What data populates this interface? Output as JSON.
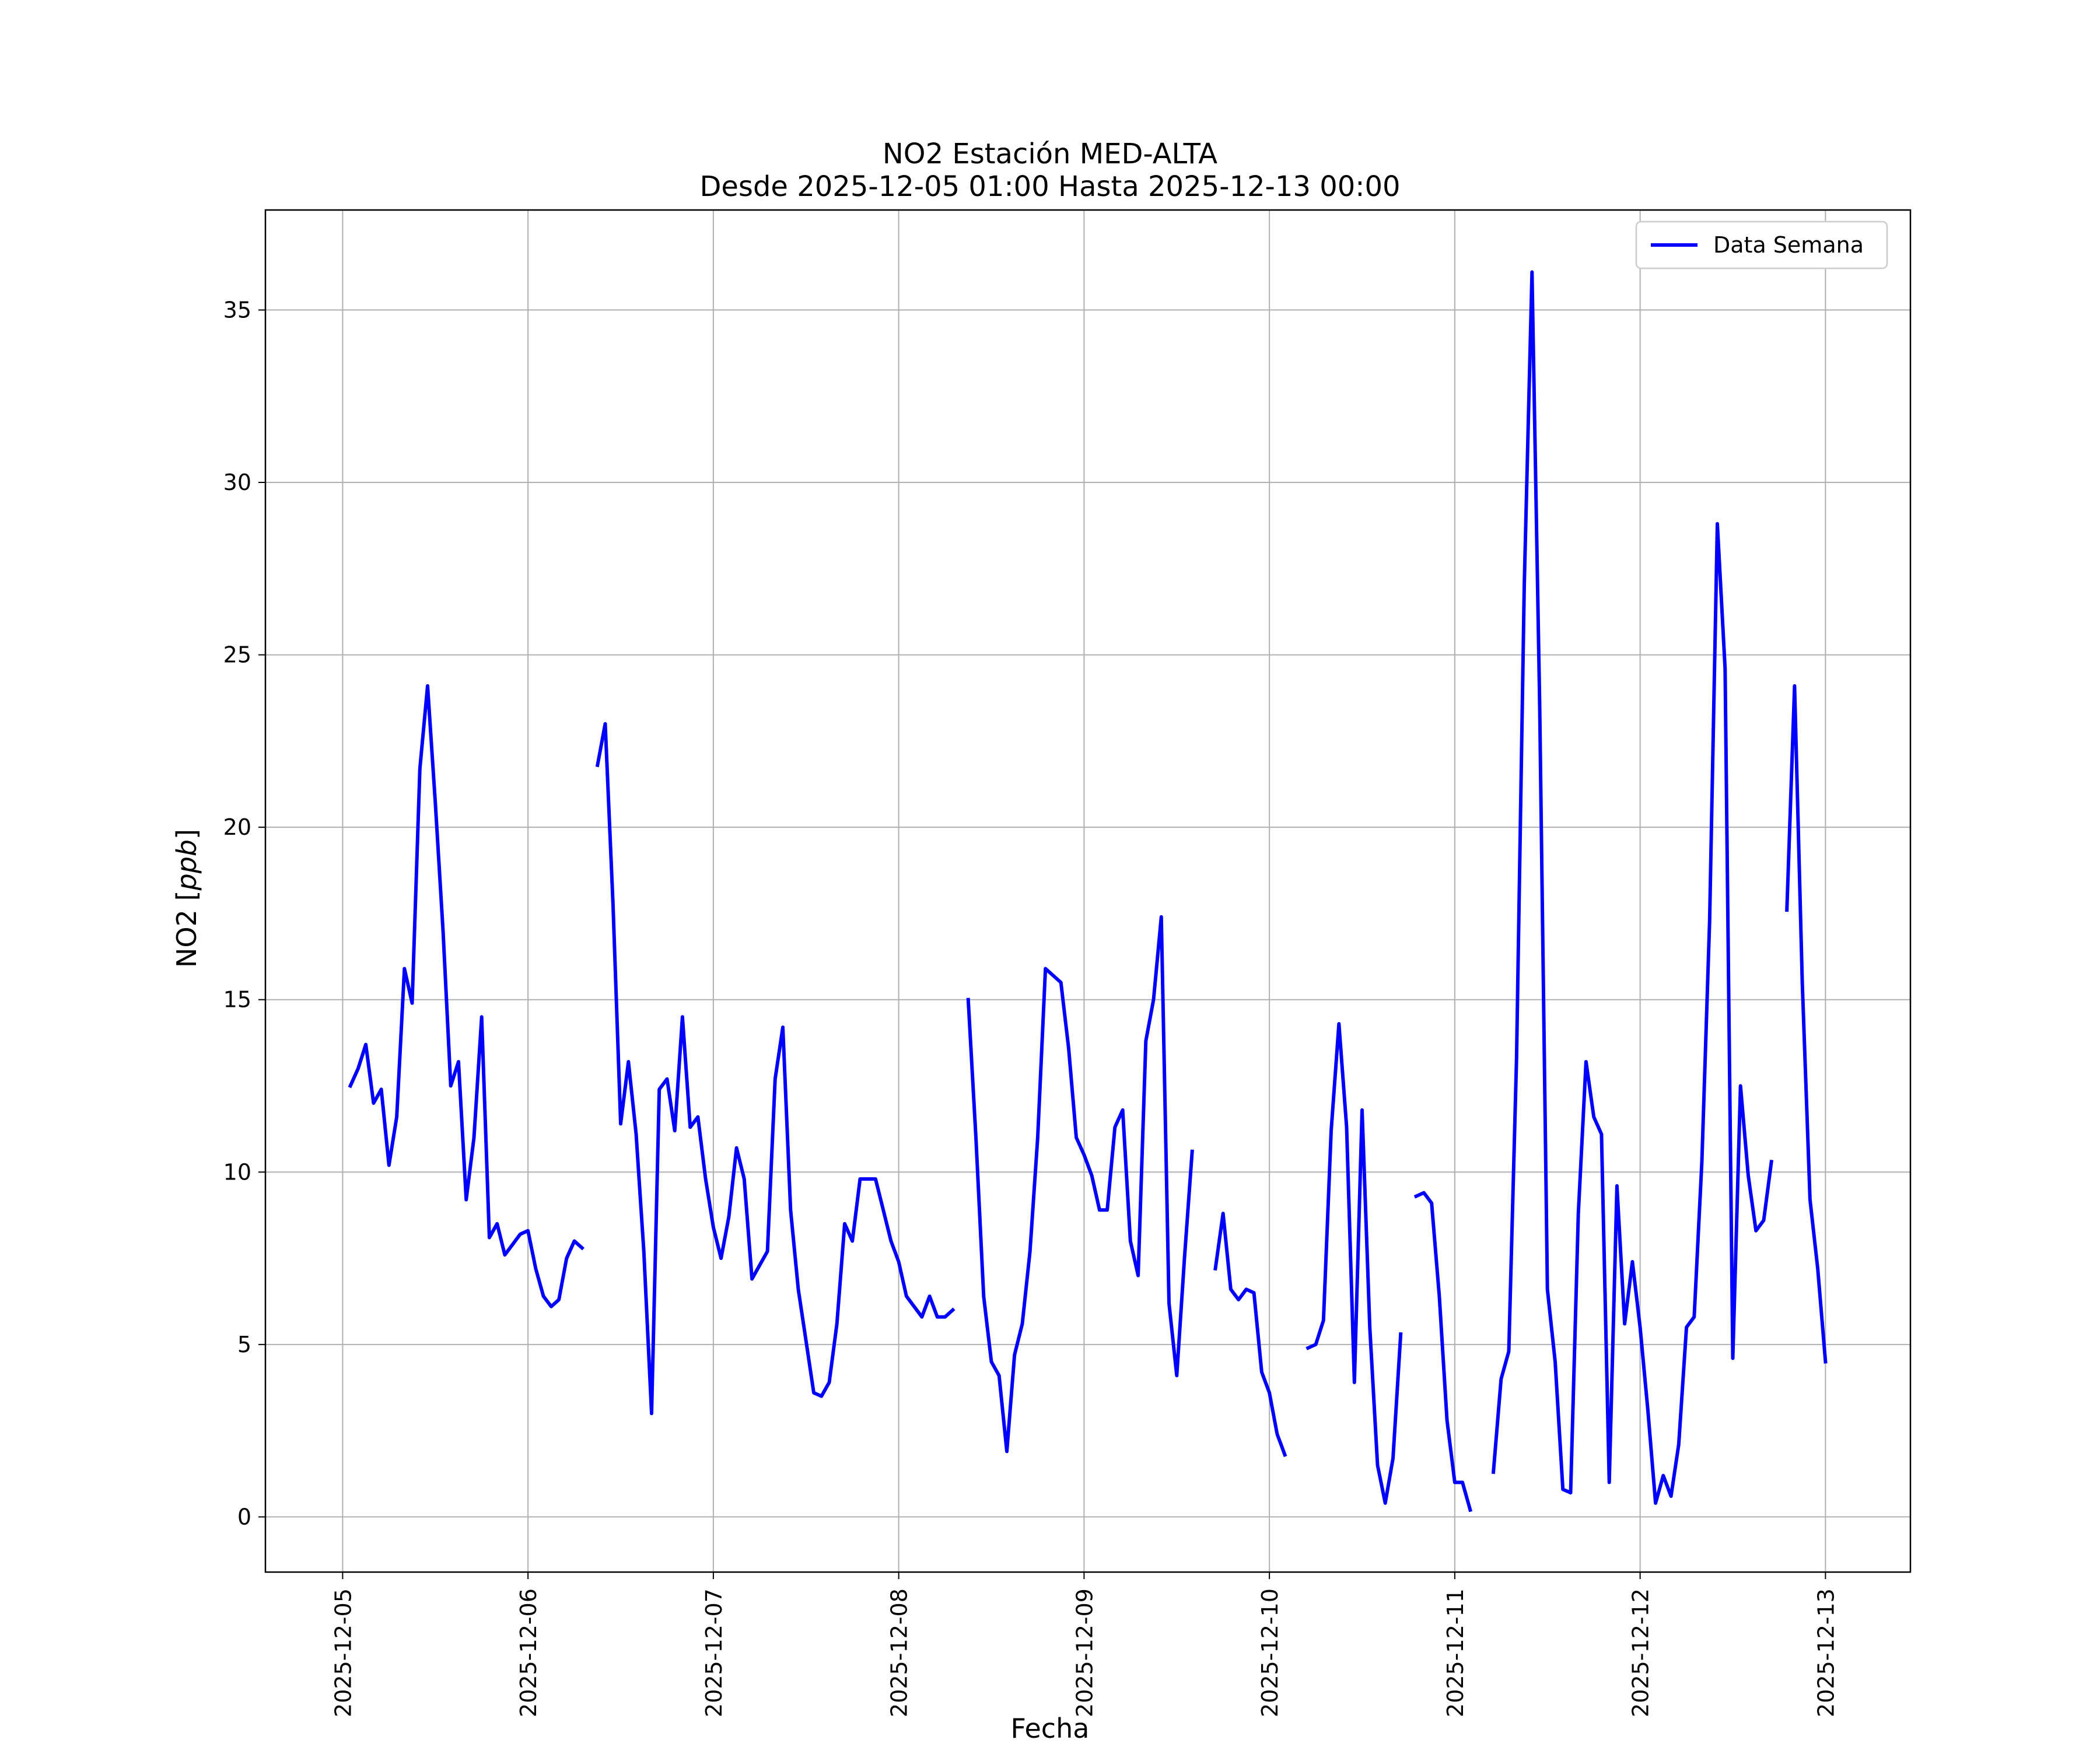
{
  "chart_data": {
    "type": "line",
    "title": "NO2 Estación MED-ALTA",
    "subtitle": "Desde 2025-12-05 01:00 Hasta 2025-12-13 00:00",
    "xlabel": "Fecha",
    "ylabel_prefix": "NO2 [",
    "ylabel_unit": "ppb",
    "ylabel_suffix": "]",
    "x_ticks": [
      "2025-12-05",
      "2025-12-06",
      "2025-12-07",
      "2025-12-08",
      "2025-12-09",
      "2025-12-10",
      "2025-12-11",
      "2025-12-12",
      "2025-12-13"
    ],
    "y_ticks": [
      0,
      5,
      10,
      15,
      20,
      25,
      30,
      35
    ],
    "xlim": [
      "2025-12-04 14:00",
      "2025-12-13 11:00"
    ],
    "ylim": [
      -1.6,
      37.9
    ],
    "grid": true,
    "legend_position": "top-right",
    "series": [
      {
        "name": "Data Semana",
        "color": "#0000ff",
        "segments": [
          [
            [
              "2025-12-05 01:00",
              12.5
            ],
            [
              "2025-12-05 02:00",
              13.0
            ],
            [
              "2025-12-05 03:00",
              13.7
            ],
            [
              "2025-12-05 04:00",
              12.0
            ],
            [
              "2025-12-05 05:00",
              12.4
            ],
            [
              "2025-12-05 06:00",
              10.2
            ],
            [
              "2025-12-05 07:00",
              11.6
            ],
            [
              "2025-12-05 08:00",
              15.9
            ],
            [
              "2025-12-05 09:00",
              14.9
            ],
            [
              "2025-12-05 10:00",
              21.7
            ],
            [
              "2025-12-05 11:00",
              24.1
            ],
            [
              "2025-12-05 12:00",
              20.7
            ],
            [
              "2025-12-05 13:00",
              17.0
            ],
            [
              "2025-12-05 14:00",
              12.5
            ],
            [
              "2025-12-05 15:00",
              13.2
            ],
            [
              "2025-12-05 16:00",
              9.2
            ],
            [
              "2025-12-05 17:00",
              11.0
            ],
            [
              "2025-12-05 18:00",
              14.5
            ],
            [
              "2025-12-05 19:00",
              8.1
            ],
            [
              "2025-12-05 20:00",
              8.5
            ],
            [
              "2025-12-05 21:00",
              7.6
            ],
            [
              "2025-12-05 22:00",
              7.9
            ],
            [
              "2025-12-05 23:00",
              8.2
            ],
            [
              "2025-12-06 00:00",
              8.3
            ],
            [
              "2025-12-06 01:00",
              7.2
            ],
            [
              "2025-12-06 02:00",
              6.4
            ],
            [
              "2025-12-06 03:00",
              6.1
            ],
            [
              "2025-12-06 04:00",
              6.3
            ],
            [
              "2025-12-06 05:00",
              7.5
            ],
            [
              "2025-12-06 06:00",
              8.0
            ],
            [
              "2025-12-06 07:00",
              7.8
            ]
          ],
          [
            [
              "2025-12-06 09:00",
              21.8
            ],
            [
              "2025-12-06 10:00",
              23.0
            ],
            [
              "2025-12-06 11:00",
              17.8
            ],
            [
              "2025-12-06 12:00",
              11.4
            ],
            [
              "2025-12-06 13:00",
              13.2
            ],
            [
              "2025-12-06 14:00",
              11.1
            ],
            [
              "2025-12-06 15:00",
              7.7
            ],
            [
              "2025-12-06 16:00",
              3.0
            ],
            [
              "2025-12-06 17:00",
              12.4
            ],
            [
              "2025-12-06 18:00",
              12.7
            ],
            [
              "2025-12-06 19:00",
              11.2
            ],
            [
              "2025-12-06 20:00",
              14.5
            ],
            [
              "2025-12-06 21:00",
              11.3
            ],
            [
              "2025-12-06 22:00",
              11.6
            ],
            [
              "2025-12-06 23:00",
              9.8
            ],
            [
              "2025-12-07 00:00",
              8.4
            ],
            [
              "2025-12-07 01:00",
              7.5
            ],
            [
              "2025-12-07 02:00",
              8.7
            ],
            [
              "2025-12-07 03:00",
              10.7
            ],
            [
              "2025-12-07 04:00",
              9.8
            ],
            [
              "2025-12-07 05:00",
              6.9
            ],
            [
              "2025-12-07 06:00",
              7.3
            ],
            [
              "2025-12-07 07:00",
              7.7
            ],
            [
              "2025-12-07 08:00",
              12.7
            ],
            [
              "2025-12-07 09:00",
              14.2
            ],
            [
              "2025-12-07 10:00",
              8.9
            ],
            [
              "2025-12-07 11:00",
              6.6
            ],
            [
              "2025-12-07 12:00",
              5.1
            ],
            [
              "2025-12-07 13:00",
              3.6
            ],
            [
              "2025-12-07 14:00",
              3.5
            ],
            [
              "2025-12-07 15:00",
              3.9
            ],
            [
              "2025-12-07 16:00",
              5.6
            ],
            [
              "2025-12-07 17:00",
              8.5
            ],
            [
              "2025-12-07 18:00",
              8.0
            ],
            [
              "2025-12-07 19:00",
              9.8
            ],
            [
              "2025-12-07 20:00",
              9.8
            ],
            [
              "2025-12-07 21:00",
              9.8
            ],
            [
              "2025-12-07 22:00",
              8.9
            ],
            [
              "2025-12-07 23:00",
              8.0
            ],
            [
              "2025-12-08 00:00",
              7.4
            ],
            [
              "2025-12-08 01:00",
              6.4
            ],
            [
              "2025-12-08 02:00",
              6.1
            ],
            [
              "2025-12-08 03:00",
              5.8
            ],
            [
              "2025-12-08 04:00",
              6.4
            ],
            [
              "2025-12-08 05:00",
              5.8
            ],
            [
              "2025-12-08 06:00",
              5.8
            ],
            [
              "2025-12-08 07:00",
              6.0
            ]
          ],
          [
            [
              "2025-12-08 09:00",
              15.0
            ],
            [
              "2025-12-08 10:00",
              11.0
            ],
            [
              "2025-12-08 11:00",
              6.4
            ],
            [
              "2025-12-08 12:00",
              4.5
            ],
            [
              "2025-12-08 13:00",
              4.1
            ],
            [
              "2025-12-08 14:00",
              1.9
            ],
            [
              "2025-12-08 15:00",
              4.7
            ],
            [
              "2025-12-08 16:00",
              5.6
            ],
            [
              "2025-12-08 17:00",
              7.7
            ],
            [
              "2025-12-08 18:00",
              11.0
            ],
            [
              "2025-12-08 19:00",
              15.9
            ],
            [
              "2025-12-08 20:00",
              15.7
            ],
            [
              "2025-12-08 21:00",
              15.5
            ],
            [
              "2025-12-08 22:00",
              13.6
            ],
            [
              "2025-12-08 23:00",
              11.0
            ],
            [
              "2025-12-09 00:00",
              10.5
            ],
            [
              "2025-12-09 01:00",
              9.9
            ],
            [
              "2025-12-09 02:00",
              8.9
            ],
            [
              "2025-12-09 03:00",
              8.9
            ],
            [
              "2025-12-09 04:00",
              11.3
            ],
            [
              "2025-12-09 05:00",
              11.8
            ],
            [
              "2025-12-09 06:00",
              8.0
            ],
            [
              "2025-12-09 07:00",
              7.0
            ],
            [
              "2025-12-09 08:00",
              13.8
            ],
            [
              "2025-12-09 09:00",
              15.0
            ],
            [
              "2025-12-09 10:00",
              17.4
            ],
            [
              "2025-12-09 11:00",
              6.2
            ],
            [
              "2025-12-09 12:00",
              4.1
            ],
            [
              "2025-12-09 13:00",
              7.5
            ],
            [
              "2025-12-09 14:00",
              10.6
            ]
          ],
          [
            [
              "2025-12-09 17:00",
              7.2
            ],
            [
              "2025-12-09 18:00",
              8.8
            ],
            [
              "2025-12-09 19:00",
              6.6
            ],
            [
              "2025-12-09 20:00",
              6.3
            ],
            [
              "2025-12-09 21:00",
              6.6
            ],
            [
              "2025-12-09 22:00",
              6.5
            ],
            [
              "2025-12-09 23:00",
              4.2
            ],
            [
              "2025-12-10 00:00",
              3.6
            ],
            [
              "2025-12-10 01:00",
              2.4
            ],
            [
              "2025-12-10 02:00",
              1.8
            ]
          ],
          [
            [
              "2025-12-10 05:00",
              4.9
            ],
            [
              "2025-12-10 06:00",
              5.0
            ],
            [
              "2025-12-10 07:00",
              5.7
            ],
            [
              "2025-12-10 08:00",
              11.2
            ],
            [
              "2025-12-10 09:00",
              14.3
            ],
            [
              "2025-12-10 10:00",
              11.3
            ],
            [
              "2025-12-10 11:00",
              3.9
            ],
            [
              "2025-12-10 12:00",
              11.8
            ],
            [
              "2025-12-10 13:00",
              5.5
            ],
            [
              "2025-12-10 14:00",
              1.5
            ],
            [
              "2025-12-10 15:00",
              0.4
            ],
            [
              "2025-12-10 16:00",
              1.7
            ],
            [
              "2025-12-10 17:00",
              5.3
            ]
          ],
          [
            [
              "2025-12-10 19:00",
              9.3
            ],
            [
              "2025-12-10 20:00",
              9.4
            ],
            [
              "2025-12-10 21:00",
              9.1
            ],
            [
              "2025-12-10 22:00",
              6.4
            ],
            [
              "2025-12-10 23:00",
              2.8
            ],
            [
              "2025-12-11 00:00",
              1.0
            ],
            [
              "2025-12-11 01:00",
              1.0
            ],
            [
              "2025-12-11 02:00",
              0.2
            ]
          ],
          [
            [
              "2025-12-11 05:00",
              1.3
            ],
            [
              "2025-12-11 06:00",
              4.0
            ],
            [
              "2025-12-11 07:00",
              4.8
            ],
            [
              "2025-12-11 08:00",
              13.3
            ],
            [
              "2025-12-11 09:00",
              27.0
            ],
            [
              "2025-12-11 10:00",
              36.1
            ],
            [
              "2025-12-11 11:00",
              23.5
            ],
            [
              "2025-12-11 12:00",
              6.6
            ],
            [
              "2025-12-11 13:00",
              4.5
            ],
            [
              "2025-12-11 14:00",
              0.8
            ],
            [
              "2025-12-11 15:00",
              0.7
            ],
            [
              "2025-12-11 16:00",
              8.8
            ],
            [
              "2025-12-11 17:00",
              13.2
            ],
            [
              "2025-12-11 18:00",
              11.6
            ],
            [
              "2025-12-11 19:00",
              11.1
            ],
            [
              "2025-12-11 20:00",
              1.0
            ],
            [
              "2025-12-11 21:00",
              9.6
            ],
            [
              "2025-12-11 22:00",
              5.6
            ],
            [
              "2025-12-11 23:00",
              7.4
            ],
            [
              "2025-12-12 00:00",
              5.5
            ],
            [
              "2025-12-12 01:00",
              3.1
            ],
            [
              "2025-12-12 02:00",
              0.4
            ],
            [
              "2025-12-12 03:00",
              1.2
            ],
            [
              "2025-12-12 04:00",
              0.6
            ],
            [
              "2025-12-12 05:00",
              2.1
            ],
            [
              "2025-12-12 06:00",
              5.5
            ],
            [
              "2025-12-12 07:00",
              5.8
            ],
            [
              "2025-12-12 08:00",
              10.3
            ],
            [
              "2025-12-12 09:00",
              17.3
            ],
            [
              "2025-12-12 10:00",
              28.8
            ],
            [
              "2025-12-12 11:00",
              24.6
            ],
            [
              "2025-12-12 12:00",
              4.6
            ],
            [
              "2025-12-12 13:00",
              12.5
            ],
            [
              "2025-12-12 14:00",
              9.9
            ],
            [
              "2025-12-12 15:00",
              8.3
            ],
            [
              "2025-12-12 16:00",
              8.6
            ],
            [
              "2025-12-12 17:00",
              10.3
            ]
          ],
          [
            [
              "2025-12-12 19:00",
              17.6
            ],
            [
              "2025-12-12 20:00",
              24.1
            ],
            [
              "2025-12-12 21:00",
              15.5
            ],
            [
              "2025-12-12 22:00",
              9.2
            ],
            [
              "2025-12-12 23:00",
              7.2
            ],
            [
              "2025-12-13 00:00",
              4.5
            ]
          ]
        ]
      }
    ]
  }
}
